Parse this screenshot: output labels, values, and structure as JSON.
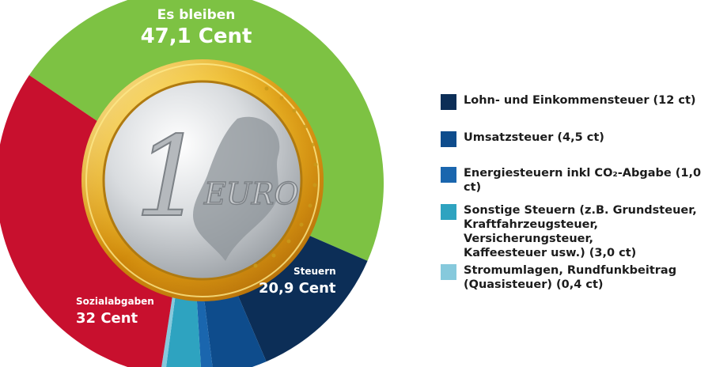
{
  "colors": {
    "green": "#7dc243",
    "red": "#c8102e",
    "navy": "#0c2e57",
    "blue": "#0e4c8c",
    "mid_blue": "#1a66ae",
    "teal": "#2ea3c0",
    "light_blue": "#86c9dc",
    "white": "#ffffff",
    "text": "#1c1c1c"
  },
  "chart_data": {
    "type": "pie",
    "unit": "Cent",
    "total": 100,
    "center_image": "euro-coin-icon",
    "coin_text": {
      "numeral": "1",
      "word": "EURO"
    },
    "slices": [
      {
        "name": "Es bleiben",
        "value": 47.1,
        "color": "#7dc243"
      },
      {
        "name": "Lohn- und Einkommensteuer",
        "value": 12,
        "color": "#0c2e57"
      },
      {
        "name": "Umsatzsteuer",
        "value": 4.5,
        "color": "#0e4c8c"
      },
      {
        "name": "Energiesteuern inkl CO₂-Abgabe",
        "value": 1.0,
        "color": "#1a66ae"
      },
      {
        "name": "Sonstige Steuern",
        "value": 3.0,
        "color": "#2ea3c0"
      },
      {
        "name": "Stromumlagen, Rundfunkbeitrag",
        "value": 0.4,
        "color": "#86c9dc"
      },
      {
        "name": "Sozialabgaben",
        "value": 32,
        "color": "#c8102e"
      }
    ],
    "labels": {
      "remaining": {
        "title": "Es bleiben",
        "value": "47,1 Cent"
      },
      "taxes": {
        "title": "Steuern",
        "value": "20,9 Cent"
      },
      "social": {
        "title": "Sozialabgaben",
        "value": "32 Cent"
      }
    },
    "legend": [
      {
        "label": "Lohn- und Einkommensteuer (12 ct)",
        "color": "#0c2e57"
      },
      {
        "label": "Umsatzsteuer (4,5 ct)",
        "color": "#0e4c8c"
      },
      {
        "label": "Energiesteuern inkl CO₂-Abgabe (1,0 ct)",
        "color": "#1a66ae"
      },
      {
        "label": "Sonstige Steuern (z.B. Grundsteuer,\nKraftfahrzeugsteuer, Versicherungsteuer,\nKaffeesteuer usw.) (3,0 ct)",
        "color": "#2ea3c0"
      },
      {
        "label": "Stromumlagen, Rundfunkbeitrag\n(Quasisteuer) (0,4 ct)",
        "color": "#86c9dc"
      }
    ]
  }
}
